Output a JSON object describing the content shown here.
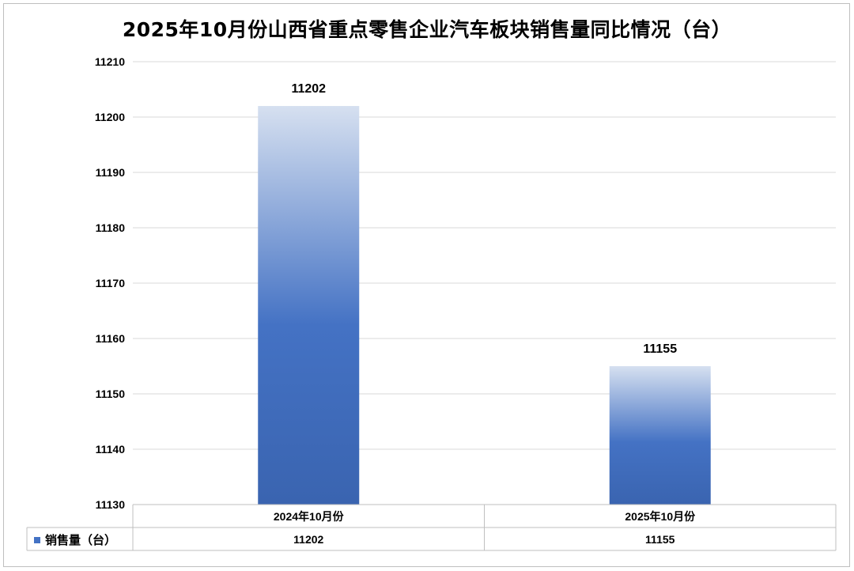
{
  "chart_data": {
    "type": "bar",
    "title": "2025年10月份山西省重点零售企业汽车板块销售量同比情况（台）",
    "categories": [
      "2024年10月份",
      "2025年10月份"
    ],
    "series": [
      {
        "name": "销售量（台）",
        "values": [
          11202,
          11155
        ]
      }
    ],
    "ylim": [
      11130,
      11210
    ],
    "yticks": [
      11130,
      11140,
      11150,
      11160,
      11170,
      11180,
      11190,
      11200,
      11210
    ],
    "data_labels": true,
    "data_table": true,
    "grid": true,
    "legend": "data-table-left",
    "colors": {
      "bar_top": "#d6e0f0",
      "bar_mid": "#4472c4",
      "bar_bottom": "#3a64b0",
      "grid": "#d9d9d9"
    }
  }
}
